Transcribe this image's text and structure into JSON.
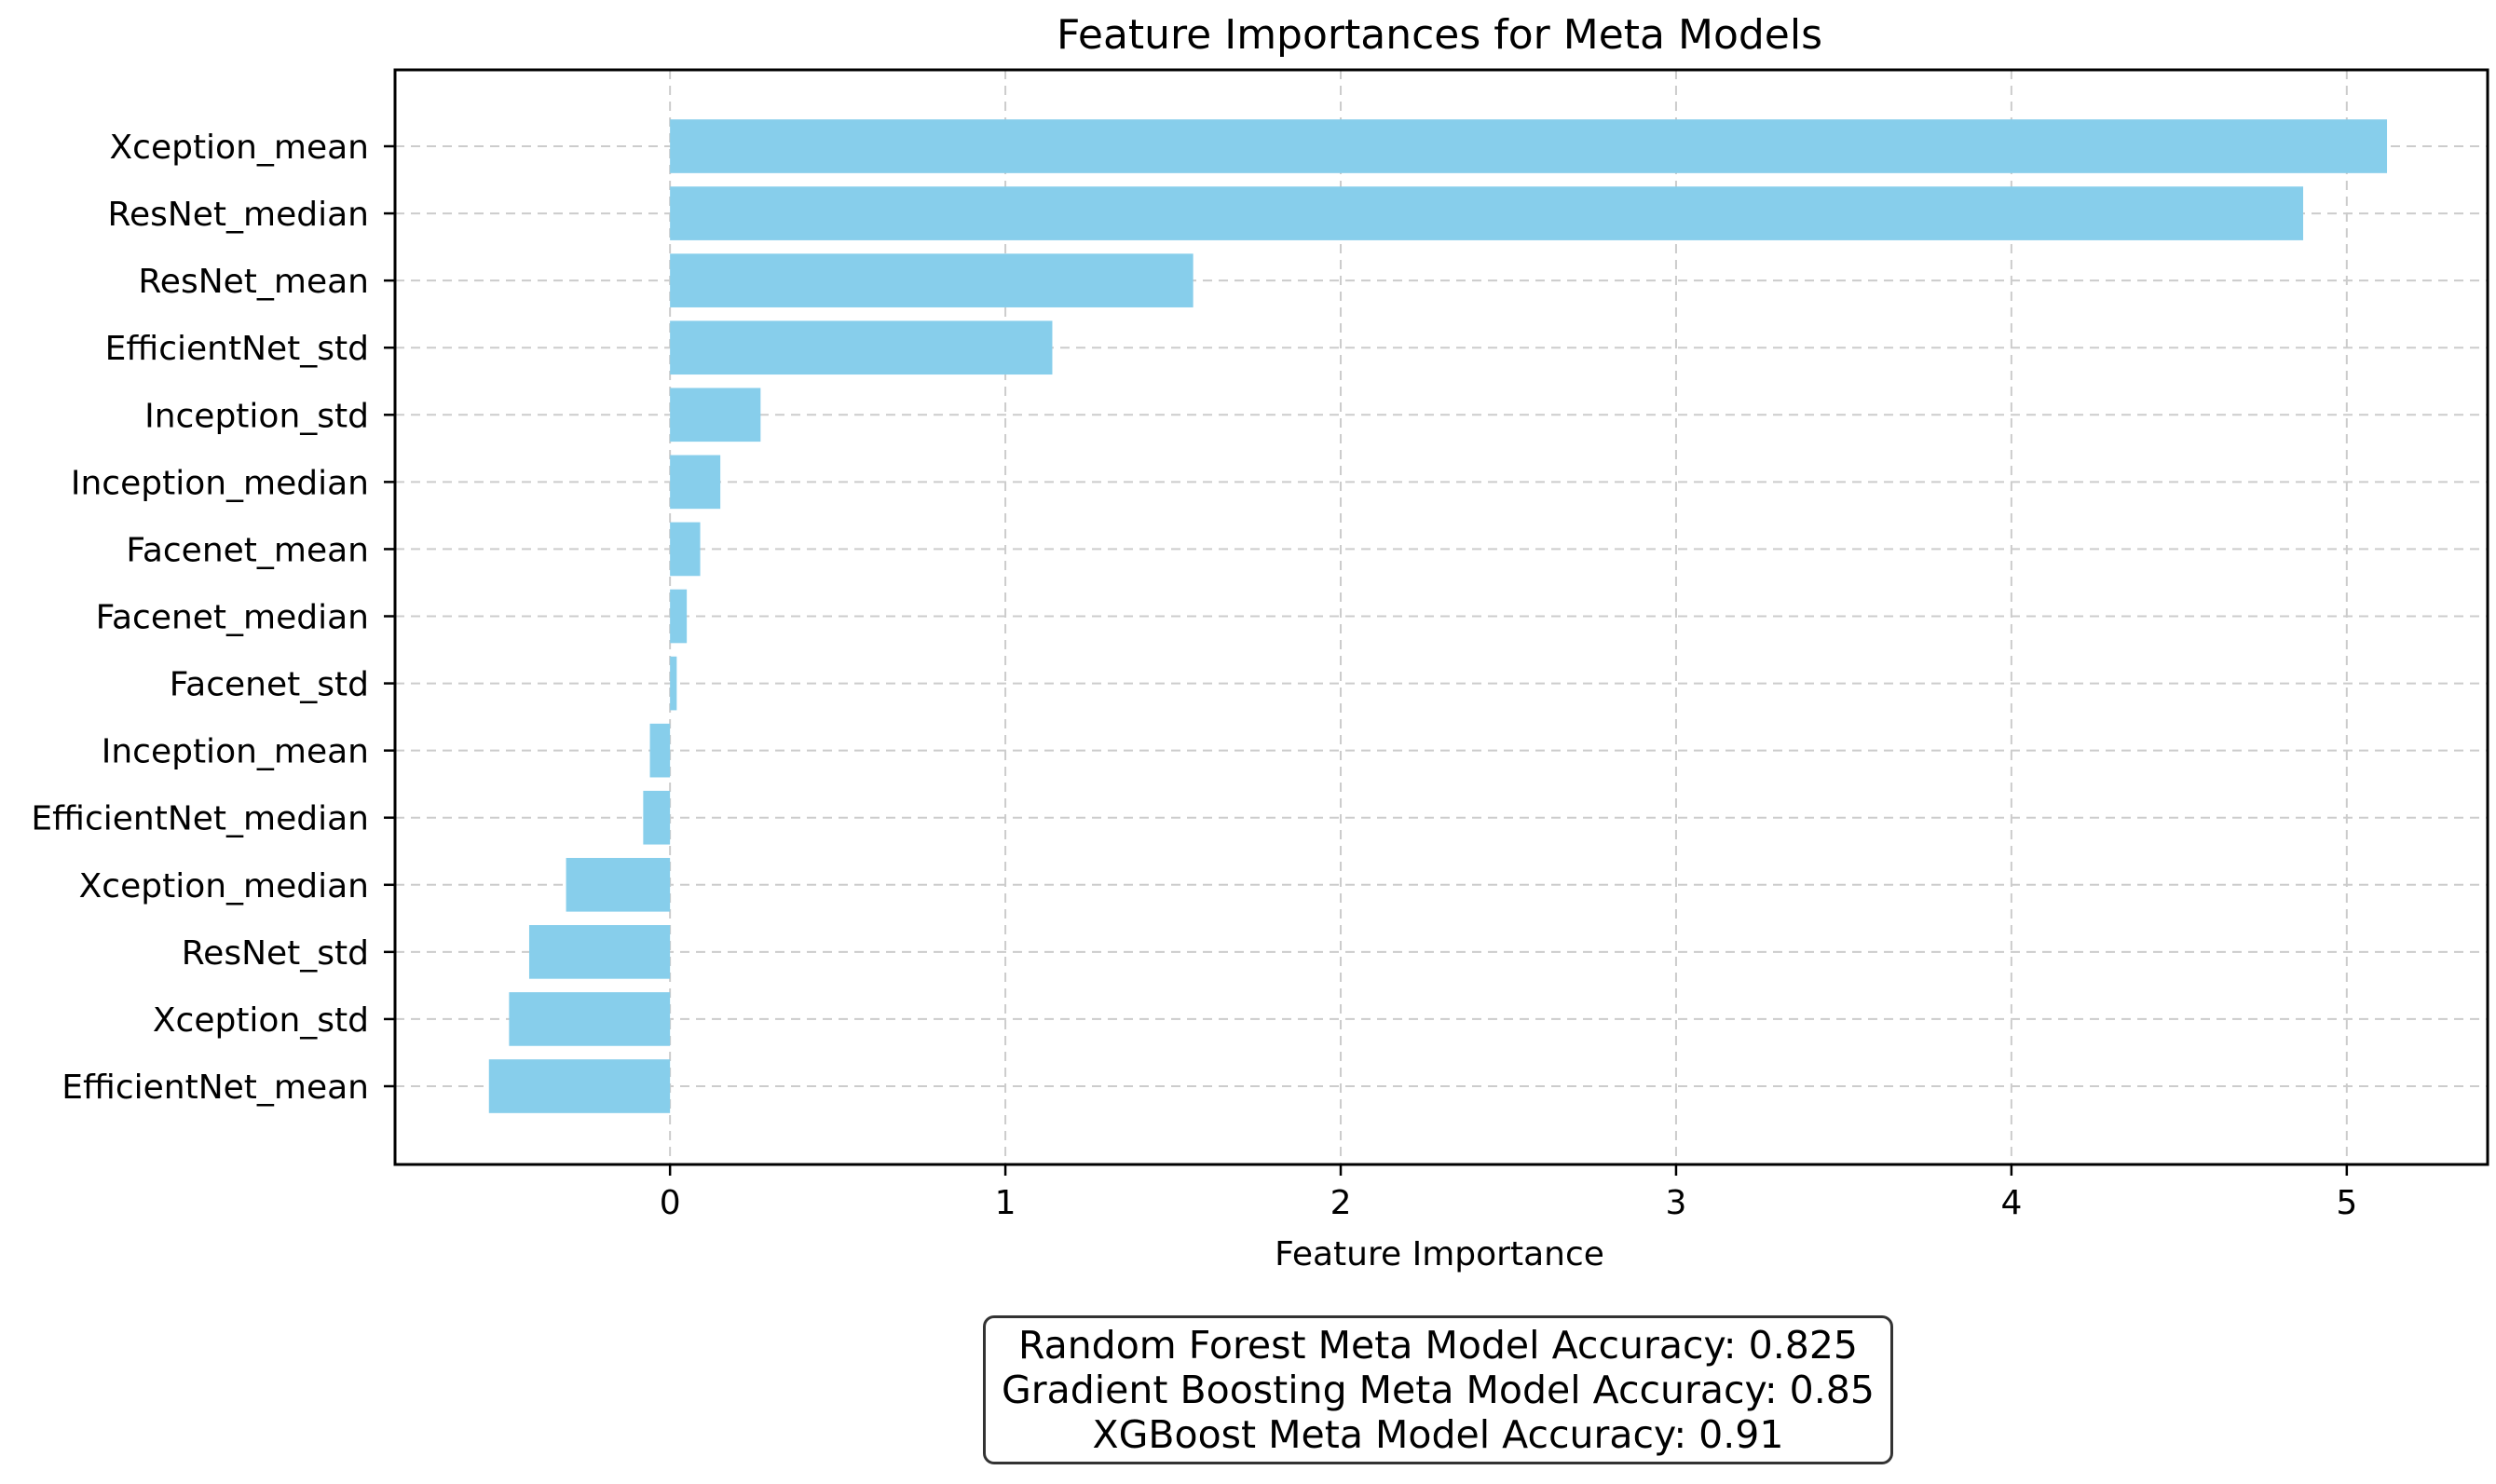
{
  "chart_data": {
    "type": "bar",
    "orientation": "horizontal",
    "title": "Feature Importances for Meta Models",
    "xlabel": "Feature Importance",
    "ylabel": "",
    "categories": [
      "Xception_mean",
      "ResNet_median",
      "ResNet_mean",
      "EfficientNet_std",
      "Inception_std",
      "Inception_median",
      "Facenet_mean",
      "Facenet_median",
      "Facenet_std",
      "Inception_mean",
      "EfficientNet_median",
      "Xception_median",
      "ResNet_std",
      "Xception_std",
      "EfficientNet_mean"
    ],
    "values": [
      5.12,
      4.87,
      1.56,
      1.14,
      0.27,
      0.15,
      0.09,
      0.05,
      0.02,
      -0.06,
      -0.08,
      -0.31,
      -0.42,
      -0.48,
      -0.54
    ],
    "xlim": [
      -0.82,
      5.42
    ],
    "xticks": [
      0,
      1,
      2,
      3,
      4,
      5
    ],
    "grid": true,
    "bar_color": "#87ceeb",
    "annotation": [
      "Random Forest Meta Model Accuracy: 0.825",
      "Gradient Boosting Meta Model Accuracy: 0.85",
      "XGBoost Meta Model Accuracy: 0.91"
    ]
  }
}
